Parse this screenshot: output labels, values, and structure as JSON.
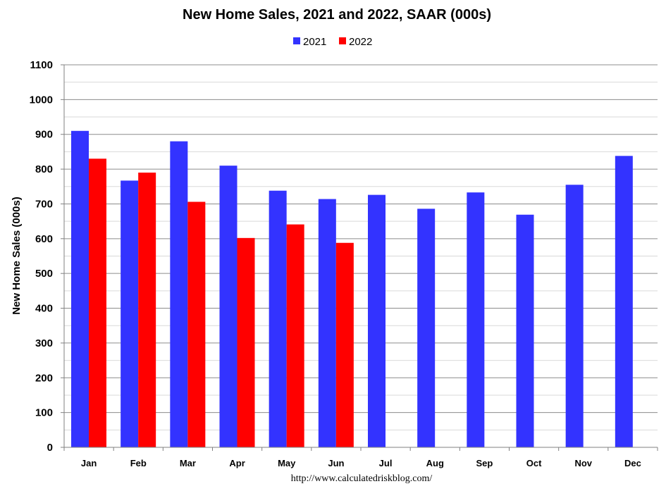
{
  "chart_data": {
    "type": "bar",
    "title": "New Home Sales,  2021 and 2022, SAAR (000s)",
    "ylabel": "New Home Sales (000s)",
    "xlabel": "",
    "source": "http://www.calculatedriskblog.com/",
    "categories": [
      "Jan",
      "Feb",
      "Mar",
      "Apr",
      "May",
      "Jun",
      "Jul",
      "Aug",
      "Sep",
      "Oct",
      "Nov",
      "Dec"
    ],
    "series": [
      {
        "name": "2021",
        "color": "#3333ff",
        "values": [
          910,
          767,
          880,
          810,
          738,
          714,
          726,
          686,
          733,
          669,
          755,
          838
        ]
      },
      {
        "name": "2022",
        "color": "#ff0000",
        "values": [
          830,
          790,
          706,
          602,
          641,
          588,
          null,
          null,
          null,
          null,
          null,
          null
        ]
      }
    ],
    "ylim": [
      0,
      1100
    ],
    "yticks": [
      0,
      100,
      200,
      300,
      400,
      500,
      600,
      700,
      800,
      900,
      1000,
      1100
    ],
    "minor_step": 50,
    "grid": true,
    "legend": "top"
  }
}
